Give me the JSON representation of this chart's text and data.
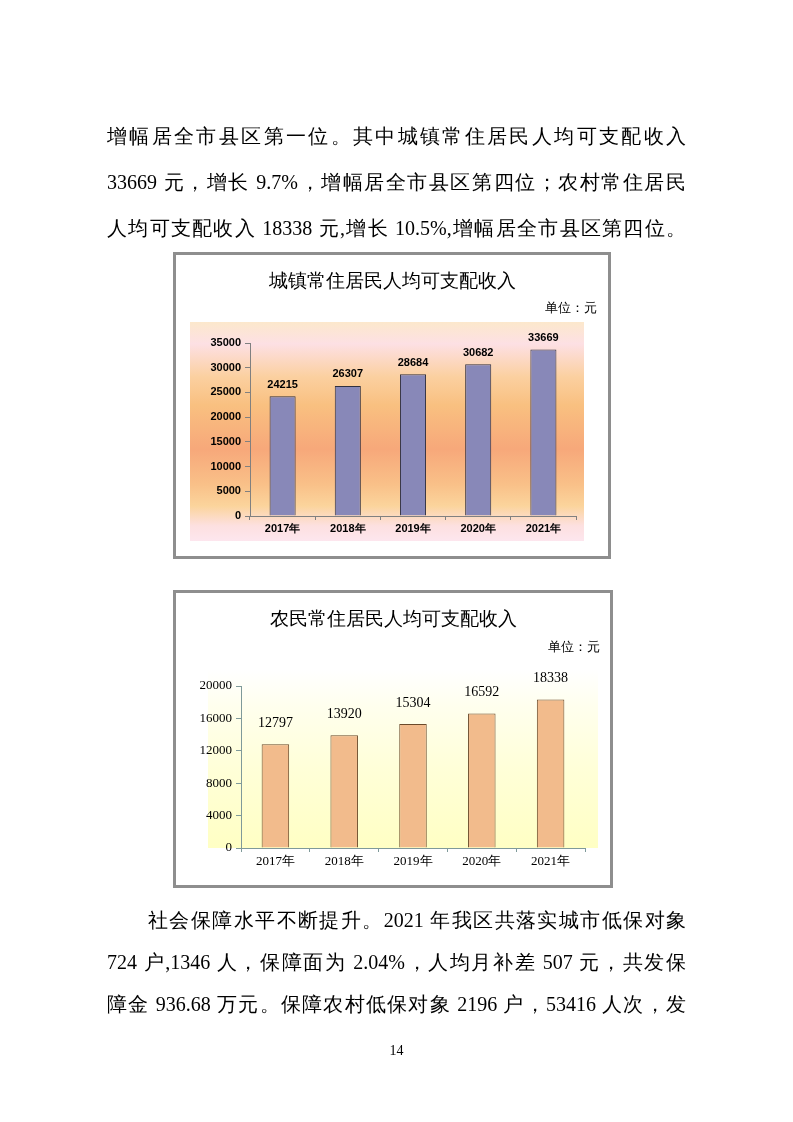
{
  "chart_data": [
    {
      "type": "other",
      "annotations": [
        "增幅居全市县区第一位。其中城镇常住居民人均可支配收入",
        "33669 元，增长 9.7%，增幅居全市县区第四位；农村常住居民",
        "人均可支配收入 18338 元,增长 10.5%,增幅居全市县区第四位。"
      ]
    },
    {
      "type": "bar",
      "title": "城镇常住居民人均可支配收入",
      "annotations": [
        "单位：元"
      ],
      "categories": [
        "2017年",
        "2018年",
        "2019年",
        "2020年",
        "2021年"
      ],
      "values": [
        24215,
        26307,
        28684,
        30682,
        33669
      ],
      "color": "#8888b8",
      "ylim": [
        0,
        35000
      ],
      "yticks": [
        0,
        5000,
        10000,
        15000,
        20000,
        25000,
        30000,
        35000
      ],
      "data_labels": true
    },
    {
      "type": "bar",
      "title": "农民常住居民人均可支配收入",
      "annotations": [
        "单位：元"
      ],
      "categories": [
        "2017年",
        "2018年",
        "2019年",
        "2020年",
        "2021年"
      ],
      "values": [
        12797,
        13920,
        15304,
        16592,
        18338
      ],
      "color": "#f2bb8c",
      "ylim": [
        0,
        20000
      ],
      "yticks": [
        0,
        4000,
        8000,
        12000,
        16000,
        20000
      ],
      "data_labels": true
    },
    {
      "type": "other",
      "annotations": [
        "社会保障水平不断提升。2021 年我区共落实城市低保对象",
        "724 户,1346 人，保障面为 2.04%，人均月补差 507 元，共发保",
        "障金 936.68 万元。保障农村低保对象 2196 户，53416 人次，发"
      ]
    },
    {
      "type": "other",
      "annotations": [
        "14"
      ]
    }
  ]
}
